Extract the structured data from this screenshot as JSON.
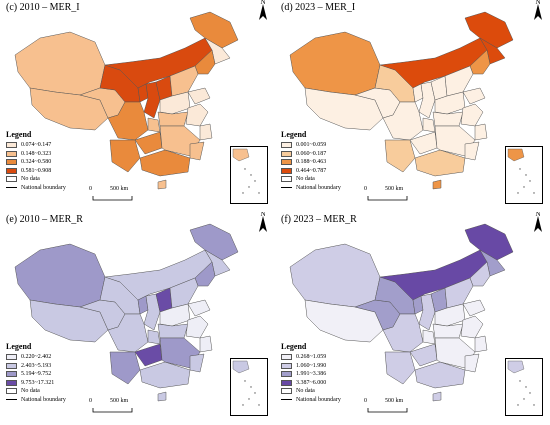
{
  "panels": [
    {
      "id": "c",
      "title": "(c) 2010 – MER_I",
      "legend": {
        "title": "Legend",
        "classes": [
          {
            "label": "0.074~0.147",
            "color": "#fbe9d8"
          },
          {
            "label": "0.148~0.323",
            "color": "#f7c08f"
          },
          {
            "label": "0.324~0.580",
            "color": "#e98a3c"
          },
          {
            "label": "0.581~0.908",
            "color": "#d94a0f"
          }
        ],
        "nodata": "No data",
        "boundary": "National boundary"
      },
      "scale": {
        "zero": "0",
        "dist": "500 km"
      },
      "north": "N"
    },
    {
      "id": "d",
      "title": "(d) 2023 – MER_I",
      "legend": {
        "title": "Legend",
        "classes": [
          {
            "label": "0.001~0.059",
            "color": "#fdf0e3"
          },
          {
            "label": "0.060~0.187",
            "color": "#f8cc9c"
          },
          {
            "label": "0.188~0.463",
            "color": "#ee9547"
          },
          {
            "label": "0.464~0.787",
            "color": "#dc4b0c"
          }
        ],
        "nodata": "No data",
        "boundary": "National boundary"
      },
      "scale": {
        "zero": "0",
        "dist": "500 km"
      },
      "north": "N"
    },
    {
      "id": "e",
      "title": "(e) 2010 – MER_R",
      "legend": {
        "title": "Legend",
        "classes": [
          {
            "label": "0.220~2.402",
            "color": "#eeeef6"
          },
          {
            "label": "2.403~5.193",
            "color": "#c9c9e3"
          },
          {
            "label": "5.194~9.752",
            "color": "#9e99c9"
          },
          {
            "label": "9.753~17.321",
            "color": "#6a4ca6"
          }
        ],
        "nodata": "No data",
        "boundary": "National boundary"
      },
      "scale": {
        "zero": "0",
        "dist": "500 km"
      },
      "north": "N"
    },
    {
      "id": "f",
      "title": "(f) 2023 – MER_R",
      "legend": {
        "title": "Legend",
        "classes": [
          {
            "label": "0.268~1.059",
            "color": "#f1f0f7"
          },
          {
            "label": "1.060~1.990",
            "color": "#cfcde6"
          },
          {
            "label": "1.991~3.386",
            "color": "#a29ecb"
          },
          {
            "label": "3.387~6.000",
            "color": "#6849a5"
          }
        ],
        "nodata": "No data",
        "boundary": "National boundary"
      },
      "scale": {
        "zero": "0",
        "dist": "500 km"
      },
      "north": "N"
    }
  ]
}
